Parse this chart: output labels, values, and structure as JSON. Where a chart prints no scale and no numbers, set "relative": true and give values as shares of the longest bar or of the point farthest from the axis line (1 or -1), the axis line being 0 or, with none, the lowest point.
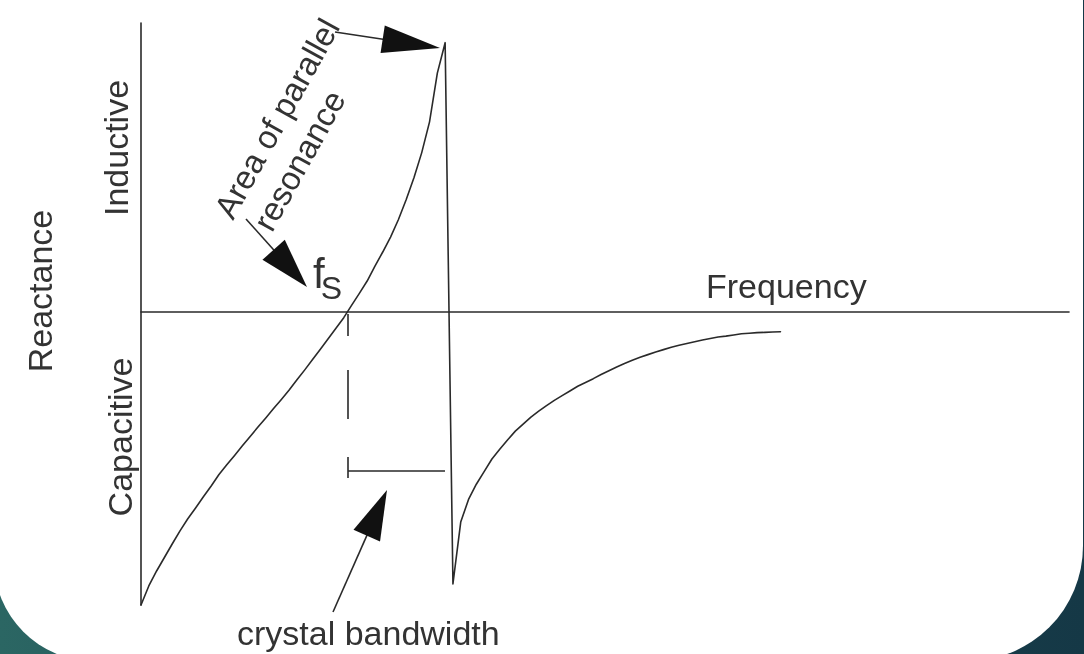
{
  "chart_data": {
    "type": "line",
    "relative": true,
    "xlabel": "Frequency",
    "ylabel": "Reactance",
    "annotations": [
      "Inductive",
      "Capacitive",
      "Area of parallel resonance",
      "f$_{S}$",
      "crystal bandwidth"
    ],
    "categories": [
      null,
      null,
      null,
      null,
      null,
      null,
      null,
      null,
      null,
      null,
      null,
      null,
      null,
      null,
      null,
      null,
      null,
      null,
      null,
      null,
      null,
      null,
      null,
      null,
      null,
      null,
      null,
      null,
      null,
      null,
      null,
      null,
      null,
      null,
      null,
      null,
      null,
      null,
      null,
      null,
      null,
      null,
      null,
      null,
      null,
      null,
      null,
      null,
      null,
      null,
      null,
      null,
      null,
      null,
      null,
      null,
      null,
      null,
      null,
      null,
      null,
      null,
      null,
      null,
      null,
      null,
      null,
      null,
      null,
      null,
      null,
      null,
      null,
      null,
      null,
      null,
      null,
      null,
      null,
      null,
      null,
      null,
      null,
      null,
      null,
      null,
      null,
      null,
      null,
      null,
      null,
      null,
      null,
      null,
      null,
      null,
      null,
      null,
      null,
      null,
      null,
      null,
      null,
      null,
      null,
      null,
      null,
      null,
      null,
      null,
      null,
      null,
      null,
      null,
      null,
      null,
      null,
      null,
      null,
      null
    ],
    "color": "#2a2a2a",
    "values": [
      -1,
      -0.935,
      -0.884,
      -0.838,
      -0.792,
      -0.747,
      -0.706,
      -0.669,
      -0.631,
      -0.594,
      -0.555,
      -0.522,
      -0.49,
      -0.457,
      -0.425,
      -0.393,
      -0.362,
      -0.33,
      -0.299,
      -0.267,
      -0.232,
      -0.198,
      -0.163,
      -0.128,
      -0.092,
      -0.056,
      -0.02,
      0.022,
      0.063,
      0.105,
      0.156,
      0.204,
      0.255,
      0.314,
      0.382,
      0.457,
      0.543,
      0.648,
      0.814,
      0.918,
      -0.928,
      -0.717,
      -0.64,
      -0.588,
      -0.545,
      -0.502,
      -0.469,
      -0.437,
      -0.407,
      -0.383,
      -0.359,
      -0.339,
      -0.32,
      -0.302,
      -0.286,
      -0.27,
      -0.254,
      -0.241,
      -0.228,
      -0.214,
      -0.201,
      -0.188,
      -0.176,
      -0.165,
      -0.155,
      -0.146,
      -0.137,
      -0.129,
      -0.121,
      -0.114,
      -0.108,
      -0.102,
      -0.096,
      -0.091,
      -0.086,
      -0.083,
      -0.079,
      -0.075,
      -0.073,
      -0.071,
      -0.07,
      -0.069,
      -0.068,
      null,
      null,
      null,
      null,
      null,
      null,
      null,
      null,
      null,
      null,
      null,
      null,
      null,
      null,
      null,
      null,
      null,
      null,
      null,
      null,
      null,
      null,
      null,
      null,
      null,
      null,
      null,
      null,
      null,
      null,
      null,
      null,
      null,
      null,
      null,
      null,
      null
    ]
  }
}
